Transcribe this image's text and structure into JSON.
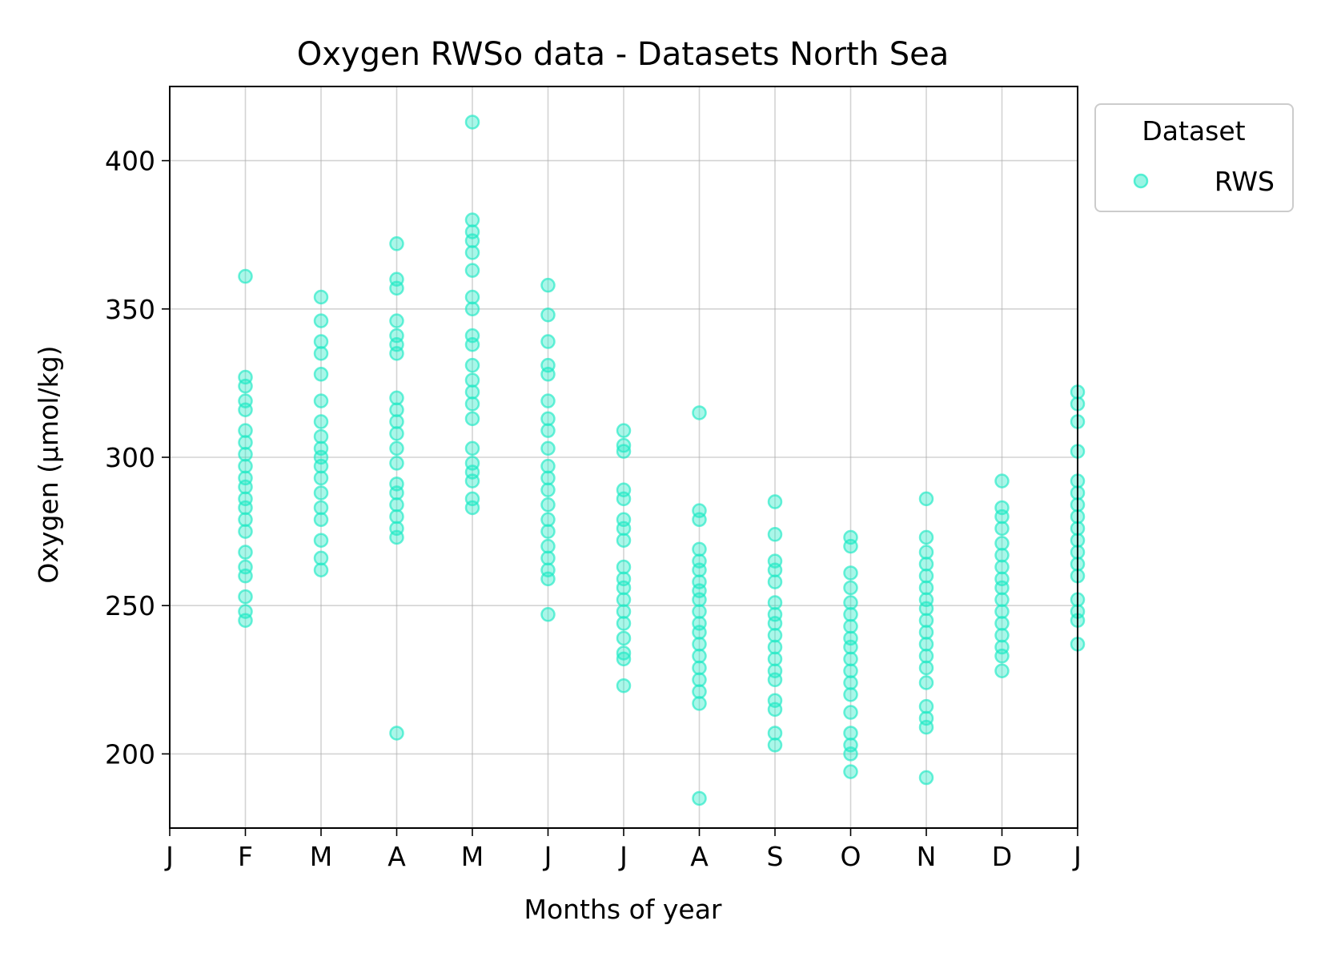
{
  "chart_data": {
    "type": "scatter",
    "title": "Oxygen RWSo data - Datasets North Sea",
    "xlabel": "Months of year",
    "ylabel": "Oxygen (µmol/kg)",
    "xlim": [
      0,
      12
    ],
    "ylim": [
      175,
      425
    ],
    "x_ticks": [
      {
        "value": 0,
        "label": "J"
      },
      {
        "value": 1,
        "label": "F"
      },
      {
        "value": 2,
        "label": "M"
      },
      {
        "value": 3,
        "label": "A"
      },
      {
        "value": 4,
        "label": "M"
      },
      {
        "value": 5,
        "label": "J"
      },
      {
        "value": 6,
        "label": "J"
      },
      {
        "value": 7,
        "label": "A"
      },
      {
        "value": 8,
        "label": "S"
      },
      {
        "value": 9,
        "label": "O"
      },
      {
        "value": 10,
        "label": "N"
      },
      {
        "value": 11,
        "label": "D"
      },
      {
        "value": 12,
        "label": "J"
      }
    ],
    "y_ticks": [
      {
        "value": 200,
        "label": "200"
      },
      {
        "value": 250,
        "label": "250"
      },
      {
        "value": 300,
        "label": "300"
      },
      {
        "value": 350,
        "label": "350"
      },
      {
        "value": 400,
        "label": "400"
      }
    ],
    "grid": true,
    "legend": {
      "title": "Dataset",
      "placement": "outside-top-right"
    },
    "series": [
      {
        "name": "RWS",
        "color": "#1de9c4",
        "points": [
          [
            1.0,
            361
          ],
          [
            1.0,
            327
          ],
          [
            1.0,
            324
          ],
          [
            1.0,
            319
          ],
          [
            1.0,
            316
          ],
          [
            1.0,
            309
          ],
          [
            1.0,
            305
          ],
          [
            1.0,
            301
          ],
          [
            1.0,
            297
          ],
          [
            1.0,
            293
          ],
          [
            1.0,
            290
          ],
          [
            1.0,
            286
          ],
          [
            1.0,
            283
          ],
          [
            1.0,
            279
          ],
          [
            1.0,
            275
          ],
          [
            1.0,
            268
          ],
          [
            1.0,
            263
          ],
          [
            1.0,
            260
          ],
          [
            1.0,
            253
          ],
          [
            1.0,
            248
          ],
          [
            1.0,
            245
          ],
          [
            2.0,
            354
          ],
          [
            2.0,
            346
          ],
          [
            2.0,
            339
          ],
          [
            2.0,
            335
          ],
          [
            2.0,
            328
          ],
          [
            2.0,
            319
          ],
          [
            2.0,
            312
          ],
          [
            2.0,
            307
          ],
          [
            2.0,
            303
          ],
          [
            2.0,
            300
          ],
          [
            2.0,
            297
          ],
          [
            2.0,
            293
          ],
          [
            2.0,
            288
          ],
          [
            2.0,
            283
          ],
          [
            2.0,
            279
          ],
          [
            2.0,
            272
          ],
          [
            2.0,
            266
          ],
          [
            2.0,
            262
          ],
          [
            3.0,
            372
          ],
          [
            3.0,
            360
          ],
          [
            3.0,
            357
          ],
          [
            3.0,
            346
          ],
          [
            3.0,
            341
          ],
          [
            3.0,
            338
          ],
          [
            3.0,
            335
          ],
          [
            3.0,
            320
          ],
          [
            3.0,
            316
          ],
          [
            3.0,
            312
          ],
          [
            3.0,
            308
          ],
          [
            3.0,
            303
          ],
          [
            3.0,
            298
          ],
          [
            3.0,
            291
          ],
          [
            3.0,
            288
          ],
          [
            3.0,
            284
          ],
          [
            3.0,
            280
          ],
          [
            3.0,
            276
          ],
          [
            3.0,
            273
          ],
          [
            3.0,
            207
          ],
          [
            4.0,
            413
          ],
          [
            4.0,
            380
          ],
          [
            4.0,
            376
          ],
          [
            4.0,
            373
          ],
          [
            4.0,
            369
          ],
          [
            4.0,
            363
          ],
          [
            4.0,
            354
          ],
          [
            4.0,
            350
          ],
          [
            4.0,
            341
          ],
          [
            4.0,
            338
          ],
          [
            4.0,
            331
          ],
          [
            4.0,
            326
          ],
          [
            4.0,
            322
          ],
          [
            4.0,
            318
          ],
          [
            4.0,
            313
          ],
          [
            4.0,
            303
          ],
          [
            4.0,
            298
          ],
          [
            4.0,
            295
          ],
          [
            4.0,
            292
          ],
          [
            4.0,
            286
          ],
          [
            4.0,
            283
          ],
          [
            5.0,
            358
          ],
          [
            5.0,
            348
          ],
          [
            5.0,
            339
          ],
          [
            5.0,
            331
          ],
          [
            5.0,
            328
          ],
          [
            5.0,
            319
          ],
          [
            5.0,
            313
          ],
          [
            5.0,
            309
          ],
          [
            5.0,
            303
          ],
          [
            5.0,
            297
          ],
          [
            5.0,
            293
          ],
          [
            5.0,
            289
          ],
          [
            5.0,
            284
          ],
          [
            5.0,
            279
          ],
          [
            5.0,
            275
          ],
          [
            5.0,
            270
          ],
          [
            5.0,
            266
          ],
          [
            5.0,
            262
          ],
          [
            5.0,
            259
          ],
          [
            5.0,
            247
          ],
          [
            6.0,
            309
          ],
          [
            6.0,
            304
          ],
          [
            6.0,
            302
          ],
          [
            6.0,
            289
          ],
          [
            6.0,
            286
          ],
          [
            6.0,
            279
          ],
          [
            6.0,
            276
          ],
          [
            6.0,
            272
          ],
          [
            6.0,
            263
          ],
          [
            6.0,
            259
          ],
          [
            6.0,
            256
          ],
          [
            6.0,
            252
          ],
          [
            6.0,
            248
          ],
          [
            6.0,
            244
          ],
          [
            6.0,
            239
          ],
          [
            6.0,
            234
          ],
          [
            6.0,
            232
          ],
          [
            6.0,
            223
          ],
          [
            7.0,
            315
          ],
          [
            7.0,
            282
          ],
          [
            7.0,
            279
          ],
          [
            7.0,
            269
          ],
          [
            7.0,
            265
          ],
          [
            7.0,
            262
          ],
          [
            7.0,
            258
          ],
          [
            7.0,
            255
          ],
          [
            7.0,
            252
          ],
          [
            7.0,
            248
          ],
          [
            7.0,
            244
          ],
          [
            7.0,
            241
          ],
          [
            7.0,
            237
          ],
          [
            7.0,
            233
          ],
          [
            7.0,
            229
          ],
          [
            7.0,
            225
          ],
          [
            7.0,
            221
          ],
          [
            7.0,
            217
          ],
          [
            7.0,
            185
          ],
          [
            8.0,
            285
          ],
          [
            8.0,
            274
          ],
          [
            8.0,
            265
          ],
          [
            8.0,
            262
          ],
          [
            8.0,
            258
          ],
          [
            8.0,
            251
          ],
          [
            8.0,
            247
          ],
          [
            8.0,
            244
          ],
          [
            8.0,
            240
          ],
          [
            8.0,
            236
          ],
          [
            8.0,
            232
          ],
          [
            8.0,
            228
          ],
          [
            8.0,
            225
          ],
          [
            8.0,
            218
          ],
          [
            8.0,
            215
          ],
          [
            8.0,
            207
          ],
          [
            8.0,
            203
          ],
          [
            9.0,
            273
          ],
          [
            9.0,
            270
          ],
          [
            9.0,
            261
          ],
          [
            9.0,
            256
          ],
          [
            9.0,
            251
          ],
          [
            9.0,
            247
          ],
          [
            9.0,
            243
          ],
          [
            9.0,
            239
          ],
          [
            9.0,
            236
          ],
          [
            9.0,
            232
          ],
          [
            9.0,
            228
          ],
          [
            9.0,
            224
          ],
          [
            9.0,
            220
          ],
          [
            9.0,
            214
          ],
          [
            9.0,
            207
          ],
          [
            9.0,
            203
          ],
          [
            9.0,
            200
          ],
          [
            9.0,
            194
          ],
          [
            10.0,
            286
          ],
          [
            10.0,
            273
          ],
          [
            10.0,
            268
          ],
          [
            10.0,
            264
          ],
          [
            10.0,
            260
          ],
          [
            10.0,
            256
          ],
          [
            10.0,
            252
          ],
          [
            10.0,
            249
          ],
          [
            10.0,
            245
          ],
          [
            10.0,
            241
          ],
          [
            10.0,
            237
          ],
          [
            10.0,
            233
          ],
          [
            10.0,
            229
          ],
          [
            10.0,
            224
          ],
          [
            10.0,
            216
          ],
          [
            10.0,
            212
          ],
          [
            10.0,
            209
          ],
          [
            10.0,
            192
          ],
          [
            11.0,
            292
          ],
          [
            11.0,
            283
          ],
          [
            11.0,
            280
          ],
          [
            11.0,
            276
          ],
          [
            11.0,
            271
          ],
          [
            11.0,
            267
          ],
          [
            11.0,
            263
          ],
          [
            11.0,
            259
          ],
          [
            11.0,
            256
          ],
          [
            11.0,
            252
          ],
          [
            11.0,
            248
          ],
          [
            11.0,
            244
          ],
          [
            11.0,
            240
          ],
          [
            11.0,
            236
          ],
          [
            11.0,
            233
          ],
          [
            11.0,
            228
          ],
          [
            12.0,
            322
          ],
          [
            12.0,
            318
          ],
          [
            12.0,
            312
          ],
          [
            12.0,
            302
          ],
          [
            12.0,
            292
          ],
          [
            12.0,
            288
          ],
          [
            12.0,
            284
          ],
          [
            12.0,
            280
          ],
          [
            12.0,
            276
          ],
          [
            12.0,
            272
          ],
          [
            12.0,
            268
          ],
          [
            12.0,
            264
          ],
          [
            12.0,
            260
          ],
          [
            12.0,
            252
          ],
          [
            12.0,
            248
          ],
          [
            12.0,
            245
          ],
          [
            12.0,
            237
          ]
        ]
      }
    ]
  }
}
